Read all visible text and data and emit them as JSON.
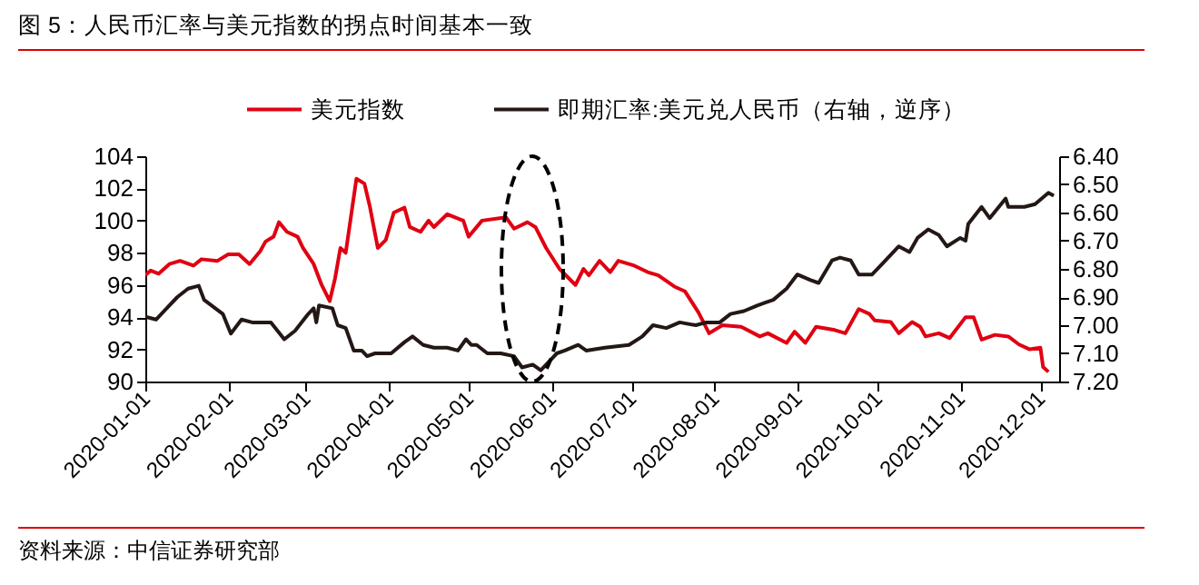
{
  "chart_data": {
    "type": "line",
    "title": "图 5：人民币汇率与美元指数的拐点时间基本一致",
    "annotations": [
      "资料来源：中信证券研究部"
    ],
    "legend": "top",
    "xlim": [
      "2020-01-01",
      "2020-12-08"
    ],
    "xticks": [
      "2020-01-01",
      "2020-02-01",
      "2020-03-01",
      "2020-04-01",
      "2020-05-01",
      "2020-06-01",
      "2020-07-01",
      "2020-08-01",
      "2020-09-01",
      "2020-10-01",
      "2020-11-01",
      "2020-12-01"
    ],
    "ylim": [
      90,
      104
    ],
    "yticks": [
      90,
      92,
      94,
      96,
      98,
      100,
      102,
      104
    ],
    "y2lim": [
      7.2,
      6.4
    ],
    "y2ticks": [
      {
        "value": 6.4,
        "label": "6.40"
      },
      {
        "value": 6.5,
        "label": "6.50"
      },
      {
        "value": 6.6,
        "label": "6.60"
      },
      {
        "value": 6.7,
        "label": "6.70"
      },
      {
        "value": 6.8,
        "label": "6.80"
      },
      {
        "value": 6.9,
        "label": "6.90"
      },
      {
        "value": 7.0,
        "label": "7.00"
      },
      {
        "value": 7.1,
        "label": "7.10"
      },
      {
        "value": 7.2,
        "label": "7.20"
      }
    ],
    "series": [
      {
        "name": "美元指数",
        "color": "#e00012",
        "axis": "y",
        "x": [
          "2020-01-01",
          "2020-01-03",
          "2020-01-06",
          "2020-01-10",
          "2020-01-14",
          "2020-01-19",
          "2020-01-22",
          "2020-01-28",
          "2020-02-01",
          "2020-02-05",
          "2020-02-09",
          "2020-02-13",
          "2020-02-15",
          "2020-02-18",
          "2020-02-20",
          "2020-02-23",
          "2020-02-27",
          "2020-02-29",
          "2020-03-04",
          "2020-03-07",
          "2020-03-10",
          "2020-03-12",
          "2020-03-14",
          "2020-03-16",
          "2020-03-20",
          "2020-03-23",
          "2020-03-25",
          "2020-03-28",
          "2020-03-31",
          "2020-04-03",
          "2020-04-07",
          "2020-04-09",
          "2020-04-13",
          "2020-04-16",
          "2020-04-18",
          "2020-04-23",
          "2020-04-29",
          "2020-05-01",
          "2020-05-06",
          "2020-05-15",
          "2020-05-18",
          "2020-05-23",
          "2020-05-26",
          "2020-05-30",
          "2020-06-04",
          "2020-06-10",
          "2020-06-13",
          "2020-06-15",
          "2020-06-19",
          "2020-06-23",
          "2020-06-26",
          "2020-07-02",
          "2020-07-07",
          "2020-07-11",
          "2020-07-17",
          "2020-07-21",
          "2020-07-26",
          "2020-07-30",
          "2020-08-04",
          "2020-08-11",
          "2020-08-18",
          "2020-08-21",
          "2020-08-28",
          "2020-08-31",
          "2020-09-04",
          "2020-09-08",
          "2020-09-15",
          "2020-09-19",
          "2020-09-24",
          "2020-09-28",
          "2020-09-30",
          "2020-10-06",
          "2020-10-09",
          "2020-10-14",
          "2020-10-17",
          "2020-10-19",
          "2020-10-24",
          "2020-10-28",
          "2020-11-03",
          "2020-11-06",
          "2020-11-09",
          "2020-11-14",
          "2020-11-19",
          "2020-11-23",
          "2020-11-27",
          "2020-12-01",
          "2020-12-02",
          "2020-12-04"
        ],
        "values": [
          96.6,
          96.9,
          96.7,
          97.3,
          97.5,
          97.2,
          97.6,
          97.5,
          97.9,
          97.9,
          97.3,
          98.1,
          98.7,
          99.0,
          99.9,
          99.3,
          99.0,
          98.3,
          97.3,
          96.0,
          95.0,
          96.4,
          98.3,
          98.0,
          102.6,
          102.3,
          100.9,
          98.3,
          98.8,
          100.5,
          100.8,
          99.6,
          99.3,
          100.0,
          99.6,
          100.4,
          100.0,
          99.0,
          100.0,
          100.2,
          99.5,
          99.9,
          99.6,
          98.3,
          97.0,
          96.0,
          97.0,
          96.6,
          97.5,
          96.8,
          97.5,
          97.2,
          96.8,
          96.6,
          95.9,
          95.6,
          94.3,
          93.0,
          93.5,
          93.4,
          92.8,
          93.0,
          92.4,
          93.1,
          92.4,
          93.4,
          93.2,
          93.0,
          94.5,
          94.2,
          93.8,
          93.7,
          93.0,
          93.7,
          93.4,
          92.8,
          93.0,
          92.7,
          94.0,
          94.0,
          92.6,
          92.9,
          92.8,
          92.3,
          92.0,
          92.1,
          90.9,
          90.6
        ]
      },
      {
        "name": "即期汇率:美元兑人民币（右轴，逆序）",
        "color": "#231815",
        "axis": "y2",
        "x": [
          "2020-01-01",
          "2020-01-05",
          "2020-01-09",
          "2020-01-13",
          "2020-01-17",
          "2020-01-21",
          "2020-01-23",
          "2020-01-30",
          "2020-02-02",
          "2020-02-06",
          "2020-02-10",
          "2020-02-17",
          "2020-02-22",
          "2020-02-26",
          "2020-03-02",
          "2020-03-04",
          "2020-03-05",
          "2020-03-06",
          "2020-03-11",
          "2020-03-13",
          "2020-03-16",
          "2020-03-19",
          "2020-03-22",
          "2020-03-24",
          "2020-03-27",
          "2020-04-02",
          "2020-04-07",
          "2020-04-10",
          "2020-04-14",
          "2020-04-18",
          "2020-04-23",
          "2020-04-27",
          "2020-04-30",
          "2020-05-02",
          "2020-05-04",
          "2020-05-08",
          "2020-05-13",
          "2020-05-18",
          "2020-05-21",
          "2020-05-25",
          "2020-05-28",
          "2020-05-31",
          "2020-06-03",
          "2020-06-06",
          "2020-06-11",
          "2020-06-14",
          "2020-06-21",
          "2020-06-30",
          "2020-07-05",
          "2020-07-09",
          "2020-07-14",
          "2020-07-19",
          "2020-07-25",
          "2020-07-29",
          "2020-08-03",
          "2020-08-07",
          "2020-08-12",
          "2020-08-17",
          "2020-08-20",
          "2020-08-23",
          "2020-08-28",
          "2020-09-01",
          "2020-09-06",
          "2020-09-09",
          "2020-09-14",
          "2020-09-17",
          "2020-09-21",
          "2020-09-24",
          "2020-09-29",
          "2020-10-03",
          "2020-10-09",
          "2020-10-13",
          "2020-10-16",
          "2020-10-20",
          "2020-10-24",
          "2020-10-27",
          "2020-11-01",
          "2020-11-03",
          "2020-11-04",
          "2020-11-09",
          "2020-11-12",
          "2020-11-18",
          "2020-11-19",
          "2020-11-25",
          "2020-11-29",
          "2020-12-04",
          "2020-12-06"
        ],
        "values": [
          6.97,
          6.98,
          6.94,
          6.9,
          6.87,
          6.86,
          6.91,
          6.96,
          7.03,
          6.98,
          6.99,
          6.99,
          7.05,
          7.02,
          6.96,
          6.94,
          6.99,
          6.93,
          6.94,
          7.0,
          7.01,
          7.09,
          7.09,
          7.11,
          7.1,
          7.1,
          7.06,
          7.04,
          7.07,
          7.08,
          7.08,
          7.09,
          7.05,
          7.07,
          7.07,
          7.1,
          7.1,
          7.11,
          7.15,
          7.14,
          7.16,
          7.13,
          7.1,
          7.09,
          7.07,
          7.09,
          7.08,
          7.07,
          7.04,
          7.0,
          7.01,
          6.99,
          7.0,
          6.99,
          6.99,
          6.96,
          6.95,
          6.93,
          6.92,
          6.91,
          6.87,
          6.82,
          6.84,
          6.85,
          6.77,
          6.76,
          6.77,
          6.82,
          6.82,
          6.78,
          6.72,
          6.74,
          6.69,
          6.66,
          6.68,
          6.72,
          6.69,
          6.7,
          6.64,
          6.58,
          6.62,
          6.55,
          6.58,
          6.58,
          6.57,
          6.53,
          6.54
        ]
      }
    ]
  }
}
